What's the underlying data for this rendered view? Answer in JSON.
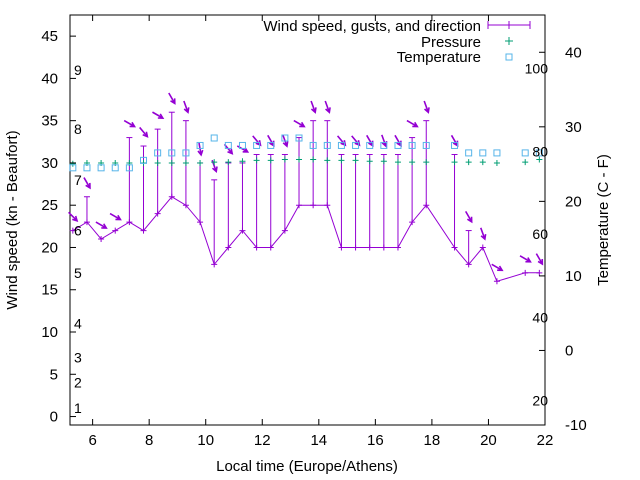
{
  "chart_data": {
    "type": "line",
    "xlabel": "Local time (Europe/Athens)",
    "ylabel": "Wind speed (kn - Beaufort)",
    "y2label": "Temperature (C - F)",
    "xlim": [
      5.2,
      22
    ],
    "ylim": [
      -1,
      47.5
    ],
    "y2lim": [
      -10,
      45
    ],
    "x_ticks": [
      6,
      8,
      10,
      12,
      14,
      16,
      18,
      20,
      22
    ],
    "y_ticks": [
      0,
      5,
      10,
      15,
      20,
      25,
      30,
      35,
      40,
      45
    ],
    "y2_ticks": [
      -10,
      0,
      10,
      20,
      30,
      40
    ],
    "beaufort_labels": [
      {
        "label": "1",
        "knots": 1
      },
      {
        "label": "2",
        "knots": 4
      },
      {
        "label": "3",
        "knots": 7
      },
      {
        "label": "4",
        "knots": 11
      },
      {
        "label": "5",
        "knots": 17
      },
      {
        "label": "6",
        "knots": 22
      },
      {
        "label": "7",
        "knots": 28
      },
      {
        "label": "8",
        "knots": 34
      },
      {
        "label": "9",
        "knots": 41
      }
    ],
    "fahrenheit_labels": [
      {
        "label": "20",
        "celsius": -6.7
      },
      {
        "label": "40",
        "celsius": 4.4
      },
      {
        "label": "60",
        "celsius": 15.6
      },
      {
        "label": "80",
        "celsius": 26.7
      },
      {
        "label": "100",
        "celsius": 37.8
      }
    ],
    "legend": [
      "Wind speed, gusts, and direction",
      "Pressure",
      "Temperature"
    ],
    "colors": {
      "wind": "#9400d3",
      "pressure": "#009e73",
      "temperature": "#56b4e9"
    },
    "wind": {
      "x": [
        5.3,
        5.8,
        6.3,
        6.8,
        7.3,
        7.8,
        8.3,
        8.8,
        9.3,
        9.8,
        10.3,
        10.8,
        11.3,
        11.8,
        12.3,
        12.8,
        13.3,
        13.8,
        14.3,
        14.8,
        15.3,
        15.8,
        16.3,
        16.8,
        17.3,
        17.8,
        18.8,
        19.3,
        19.8,
        20.3,
        21.3,
        21.8
      ],
      "speed": [
        22,
        23,
        21,
        22,
        23,
        22,
        24,
        26,
        25,
        23,
        18,
        20,
        22,
        20,
        20,
        22,
        25,
        25,
        25,
        20,
        20,
        20,
        20,
        20,
        23,
        25,
        20,
        18,
        20,
        16,
        17,
        17
      ],
      "gust": [
        22,
        26,
        21,
        22,
        33,
        32,
        34,
        36,
        35,
        30,
        28,
        30,
        30,
        31,
        31,
        31,
        33,
        35,
        35,
        31,
        31,
        31,
        31,
        31,
        33,
        35,
        31,
        22,
        20,
        16,
        17,
        17
      ],
      "direction_deg": [
        315,
        330,
        300,
        300,
        300,
        320,
        300,
        330,
        340,
        350,
        340,
        320,
        300,
        320,
        330,
        340,
        300,
        340,
        340,
        320,
        320,
        330,
        340,
        330,
        300,
        340,
        330,
        330,
        340,
        300,
        300,
        330
      ]
    },
    "pressure": {
      "x": [
        5.3,
        5.8,
        6.3,
        6.8,
        7.3,
        7.8,
        8.3,
        8.8,
        9.3,
        9.8,
        10.3,
        10.8,
        11.3,
        11.8,
        12.3,
        12.8,
        13.3,
        13.8,
        14.3,
        14.8,
        15.3,
        15.8,
        16.3,
        16.8,
        17.3,
        17.8,
        18.8,
        19.3,
        19.8,
        20.3,
        21.3,
        21.8
      ],
      "y": [
        29.9,
        30.0,
        30.0,
        30.0,
        30.0,
        30.0,
        30.0,
        30.0,
        30.0,
        30.0,
        30.1,
        30.1,
        30.2,
        30.3,
        30.3,
        30.4,
        30.4,
        30.4,
        30.3,
        30.3,
        30.3,
        30.2,
        30.2,
        30.1,
        30.1,
        30.1,
        30.1,
        30.1,
        30.1,
        30.0,
        30.1,
        30.4
      ]
    },
    "temperature": {
      "x": [
        5.3,
        5.8,
        6.3,
        6.8,
        7.3,
        7.8,
        8.3,
        8.8,
        9.3,
        9.8,
        10.3,
        10.8,
        11.3,
        11.8,
        12.3,
        12.8,
        13.3,
        13.8,
        14.3,
        14.8,
        15.3,
        15.8,
        16.3,
        16.8,
        17.3,
        17.8,
        18.8,
        19.3,
        19.8,
        20.3,
        21.3,
        21.8
      ],
      "y": [
        24.5,
        24.5,
        24.5,
        24.5,
        24.5,
        25.5,
        26.5,
        26.5,
        26.5,
        27.5,
        28.5,
        27.5,
        27.5,
        27.5,
        27.5,
        28.5,
        28.5,
        27.5,
        27.5,
        27.5,
        27.5,
        27.5,
        27.5,
        27.5,
        27.5,
        27.5,
        27.5,
        26.5,
        26.5,
        26.5,
        26.5,
        26.5
      ]
    }
  }
}
